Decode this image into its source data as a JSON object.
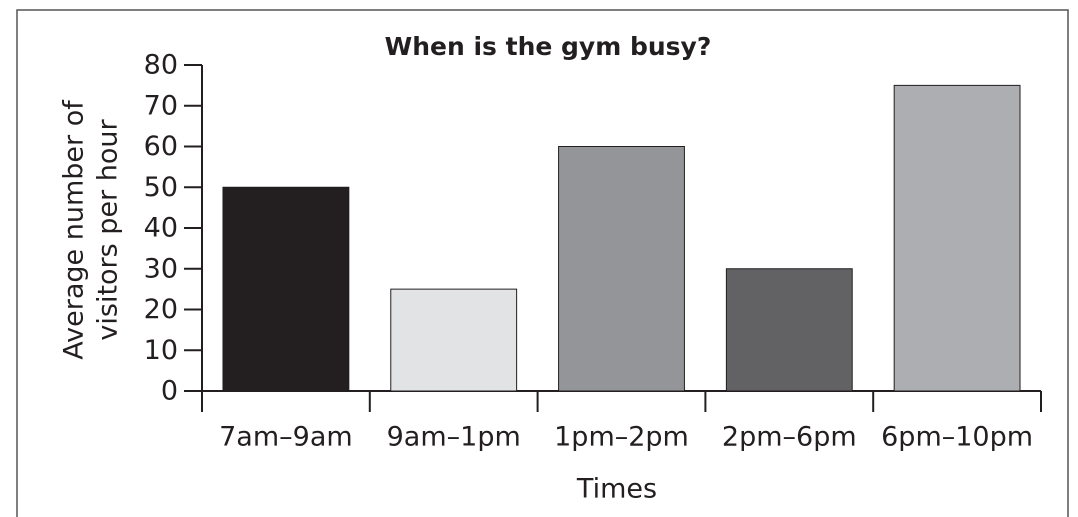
{
  "chart_data": {
    "type": "bar",
    "title": "When is the gym busy?",
    "categories": [
      "7am–9am",
      "9am–1pm",
      "1pm–2pm",
      "2pm–6pm",
      "6pm–10pm"
    ],
    "values": [
      50,
      25,
      60,
      30,
      75
    ],
    "colors": [
      "#231f20",
      "#e2e3e4",
      "#939598",
      "#626264",
      "#adaeb1"
    ],
    "xlabel": "Times",
    "ylabel": [
      "Average number of",
      "visitors per hour"
    ],
    "ylim": [
      0,
      80
    ],
    "yticks": [
      0,
      10,
      20,
      30,
      40,
      50,
      60,
      70,
      80
    ],
    "grid": false
  }
}
